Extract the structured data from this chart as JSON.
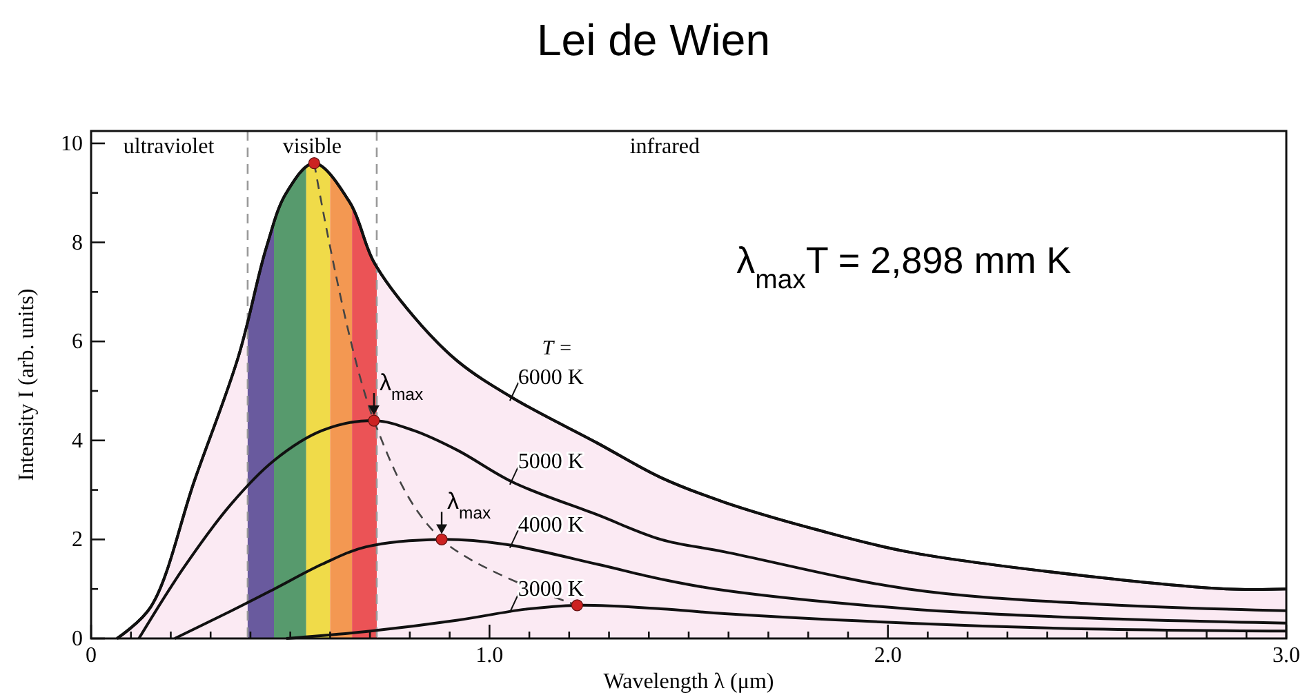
{
  "chart_data": {
    "type": "line",
    "title": "Lei de Wien",
    "xlabel": "Wavelength  λ  (μm)",
    "ylabel": "Intensity  I  (arb. units)",
    "xlim": [
      0,
      3.0
    ],
    "ylim": [
      0,
      10.25
    ],
    "xticks": [
      0,
      {
        "value": 0.1,
        "label": null
      },
      {
        "value": 0.2,
        "label": null
      },
      {
        "value": 0.3,
        "label": null
      },
      {
        "value": 0.4,
        "label": null
      },
      {
        "value": 0.5,
        "label": null
      },
      {
        "value": 0.6,
        "label": null
      },
      {
        "value": 0.7,
        "label": null
      },
      {
        "value": 0.8,
        "label": null
      },
      {
        "value": 0.9,
        "label": null
      },
      {
        "value": 1,
        "label": "1.0"
      },
      {
        "value": 1.1,
        "label": null
      },
      {
        "value": 1.2,
        "label": null
      },
      {
        "value": 1.3,
        "label": null
      },
      {
        "value": 1.4,
        "label": null
      },
      {
        "value": 1.5,
        "label": null
      },
      {
        "value": 1.6,
        "label": null
      },
      {
        "value": 1.7,
        "label": null
      },
      {
        "value": 1.8,
        "label": null
      },
      {
        "value": 1.9,
        "label": null
      },
      {
        "value": 2,
        "label": "2.0"
      },
      {
        "value": 2.1,
        "label": null
      },
      {
        "value": 2.2,
        "label": null
      },
      {
        "value": 2.3,
        "label": null
      },
      {
        "value": 2.4,
        "label": null
      },
      {
        "value": 2.5,
        "label": null
      },
      {
        "value": 2.6,
        "label": null
      },
      {
        "value": 2.7,
        "label": null
      },
      {
        "value": 2.8,
        "label": null
      },
      {
        "value": 2.9,
        "label": null
      },
      {
        "value": 3,
        "label": "3.0"
      }
    ],
    "yticks": [
      0,
      {
        "value": 1,
        "label": null
      },
      2,
      {
        "value": 3,
        "label": null
      },
      4,
      {
        "value": 5,
        "label": null
      },
      6,
      {
        "value": 7,
        "label": null
      },
      8,
      {
        "value": 9,
        "label": null
      },
      10
    ],
    "grid": false,
    "legend": "center",
    "series": [
      {
        "name": "6000 K",
        "type": "area",
        "color": "#fbeaf3",
        "x": [
          0.065,
          0.15,
          0.26,
          0.37,
          0.44,
          0.49,
          0.56,
          0.65,
          0.71,
          0.81,
          0.92,
          1.06,
          1.27,
          1.43,
          1.59,
          1.82,
          2.05,
          2.51,
          2.85,
          3.0
        ],
        "values": [
          0,
          0.64,
          3.2,
          5.7,
          7.9,
          9.0,
          9.6,
          8.8,
          7.6,
          6.5,
          5.6,
          4.85,
          3.95,
          3.25,
          2.75,
          2.2,
          1.75,
          1.25,
          1.0,
          1.0
        ]
      },
      {
        "name": "5000 K",
        "color": "#111111",
        "x": [
          0.12,
          0.23,
          0.35,
          0.46,
          0.58,
          0.71,
          0.81,
          0.92,
          1.06,
          1.27,
          1.43,
          1.59,
          2.05,
          2.51,
          3.0
        ],
        "values": [
          0,
          1.4,
          2.7,
          3.6,
          4.2,
          4.4,
          4.2,
          3.8,
          3.15,
          2.5,
          2.0,
          1.75,
          1.0,
          0.7,
          0.56
        ]
      },
      {
        "name": "4000 K",
        "color": "#111111",
        "x": [
          0.21,
          0.35,
          0.46,
          0.58,
          0.69,
          0.88,
          1.04,
          1.27,
          1.43,
          1.59,
          2.05,
          2.51,
          3.0
        ],
        "values": [
          0,
          0.55,
          1.0,
          1.5,
          1.85,
          2.0,
          1.9,
          1.5,
          1.2,
          0.97,
          0.6,
          0.41,
          0.31
        ]
      },
      {
        "name": "3000 K",
        "color": "#111111",
        "x": [
          0.49,
          0.69,
          0.92,
          1.09,
          1.22,
          1.43,
          1.59,
          2.05,
          2.51,
          3.0
        ],
        "values": [
          0,
          0.14,
          0.37,
          0.59,
          0.67,
          0.6,
          0.5,
          0.31,
          0.19,
          0.15
        ]
      },
      {
        "type": "line",
        "line_style": "dashed",
        "color": "#444444",
        "x": [
          0.56,
          0.71,
          0.88,
          1.22
        ],
        "values": [
          9.6,
          4.4,
          2.0,
          0.67
        ]
      },
      {
        "type": "scatter",
        "marker": "circle",
        "color": "#cc2222",
        "x": [
          0.56,
          0.71,
          0.88,
          1.22
        ],
        "values": [
          9.6,
          4.4,
          2.0,
          0.67
        ]
      }
    ],
    "bands": [
      {
        "axis": "x",
        "from": 0.393,
        "to": 0.459,
        "color": "#6b62a6"
      },
      {
        "axis": "x",
        "from": 0.459,
        "to": 0.54,
        "color": "#58a872"
      },
      {
        "axis": "x",
        "from": 0.54,
        "to": 0.6,
        "color": "#f4ef4c"
      },
      {
        "axis": "x",
        "from": 0.6,
        "to": 0.655,
        "color": "#f7a656"
      },
      {
        "axis": "x",
        "from": 0.655,
        "to": 0.717,
        "color": "#ef5a5a"
      }
    ],
    "ref_lines": [
      {
        "axis": "x",
        "value": 0.393,
        "color": "#999999",
        "line_style": "dashed"
      },
      {
        "axis": "x",
        "value": 0.717,
        "color": "#999999",
        "line_style": "dashed"
      }
    ],
    "annotations": [
      "T =",
      "λ$_{max}$T = 2,898 mm K",
      "ultraviolet",
      "visible",
      "infrared",
      {
        "text": "λ$_{max}$",
        "x": 0.71,
        "y": 4.4
      },
      {
        "text": "λ$_{max}$",
        "x": 0.88,
        "y": 2.0
      }
    ]
  }
}
